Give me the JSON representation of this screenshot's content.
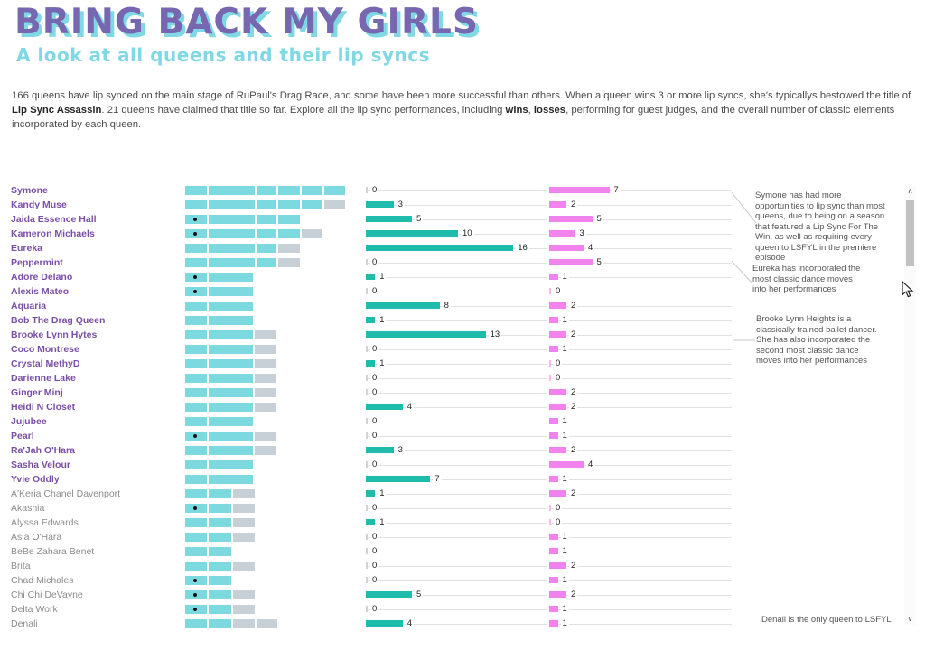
{
  "header": {
    "title": "BRING BACK MY GIRLS",
    "subtitle": "A look at all queens and their lip syncs"
  },
  "intro": {
    "p1": "166 queens have lip synced on the main stage of RuPaul's Drag Race, and some have been more successful than others. When a queen wins 3 or more lip syncs, she's typicallys bestowed the title of ",
    "b1": "Lip Sync Assassin",
    "p2": ". 21 queens have claimed that title so far. Explore all the lip sync performances, including ",
    "b2": "wins",
    "p3": ", ",
    "b3": "losses",
    "p4": ", performing for guest judges, and the overall number of classic elements incorporated by each queen."
  },
  "colors": {
    "title_purple": "#7766b0",
    "title_shadow_cyan": "#7fd8e3",
    "subtitle_cyan": "#7fd8e3",
    "queen_name_purple": "#7b4fa6",
    "queen_name_gray": "#8d8d8d",
    "segment_teal": "#7cd9e0",
    "segment_gray": "#c7d0d7",
    "bar_teal": "#1fbcab",
    "bar_pink": "#f383ec",
    "track_gray": "#e2e2e2"
  },
  "chart_data": {
    "type": "bar",
    "title": "BRING BACK MY GIRLS",
    "subtitle": "A look at all queens and their lip syncs",
    "legend_position": "none",
    "grid": false,
    "categories": [
      "Symone",
      "Kandy Muse",
      "Jaida Essence Hall",
      "Kameron Michaels",
      "Eureka",
      "Peppermint",
      "Adore Delano",
      "Alexis Mateo",
      "Aquaria",
      "Bob The Drag Queen",
      "Brooke Lynn Hytes",
      "Coco Montrese",
      "Crystal MethyD",
      "Darienne Lake",
      "Ginger Minj",
      "Heidi N Closet",
      "Jujubee",
      "Pearl",
      "Ra'Jah O'Hara",
      "Sasha Velour",
      "Yvie Oddly",
      "A'Keria Chanel Davenport",
      "Akashia",
      "Alyssa Edwards",
      "Asia O'Hara",
      "BeBe Zahara Benet",
      "Brita",
      "Chad Michales",
      "Chi Chi DeVayne",
      "Delta Work",
      "Denali"
    ],
    "assassin": [
      true,
      true,
      true,
      true,
      true,
      true,
      true,
      true,
      true,
      true,
      true,
      true,
      true,
      true,
      true,
      true,
      true,
      true,
      true,
      true,
      true,
      false,
      false,
      false,
      false,
      false,
      false,
      false,
      false,
      false,
      false
    ],
    "dots": [
      false,
      false,
      true,
      true,
      false,
      false,
      true,
      true,
      false,
      false,
      false,
      false,
      false,
      false,
      false,
      false,
      false,
      true,
      false,
      false,
      false,
      false,
      true,
      false,
      false,
      false,
      false,
      true,
      true,
      true,
      false
    ],
    "segments": [
      [
        "t24",
        "t51",
        "t22",
        "t24",
        "t23",
        "t23"
      ],
      [
        "t24",
        "t51",
        "t22",
        "t24",
        "t23",
        "g23"
      ],
      [
        "t24",
        "t51",
        "t22",
        "t24"
      ],
      [
        "t24",
        "t51",
        "t22",
        "t24",
        "g23"
      ],
      [
        "t24",
        "t51",
        "t22",
        "g24"
      ],
      [
        "t24",
        "t51",
        "t22",
        "g24"
      ],
      [
        "t24",
        "t49"
      ],
      [
        "t24",
        "t49"
      ],
      [
        "t24",
        "t49"
      ],
      [
        "t24",
        "t49"
      ],
      [
        "t24",
        "t49",
        "g24"
      ],
      [
        "t24",
        "t49",
        "g24"
      ],
      [
        "t24",
        "t49",
        "g24"
      ],
      [
        "t24",
        "t49",
        "g24"
      ],
      [
        "t24",
        "t49",
        "g24"
      ],
      [
        "t24",
        "t49",
        "g24"
      ],
      [
        "t24",
        "t49"
      ],
      [
        "t24",
        "t49",
        "g24"
      ],
      [
        "t24",
        "t49",
        "g24"
      ],
      [
        "t24",
        "t49"
      ],
      [
        "t24",
        "t49"
      ],
      [
        "t24",
        "t25",
        "g24"
      ],
      [
        "t24",
        "t25",
        "g24"
      ],
      [
        "t24",
        "t25",
        "g24"
      ],
      [
        "t24",
        "t25",
        "g24"
      ],
      [
        "t24",
        "t25"
      ],
      [
        "t24",
        "t25",
        "g24"
      ],
      [
        "t24",
        "t25"
      ],
      [
        "t24",
        "t25",
        "g24"
      ],
      [
        "t24",
        "t25",
        "g24"
      ],
      [
        "t24",
        "t25",
        "g24",
        "g23"
      ]
    ],
    "series": [
      {
        "name": "classic-elements-teal",
        "color": "#1fbcab",
        "values": [
          0,
          3,
          5,
          10,
          16,
          0,
          1,
          0,
          8,
          1,
          13,
          0,
          1,
          0,
          0,
          4,
          0,
          0,
          3,
          0,
          7,
          1,
          0,
          1,
          0,
          0,
          0,
          0,
          5,
          0,
          4
        ]
      },
      {
        "name": "wins-pink",
        "color": "#f383ec",
        "values": [
          7,
          2,
          5,
          3,
          4,
          5,
          1,
          0,
          2,
          1,
          2,
          1,
          0,
          0,
          2,
          2,
          1,
          1,
          2,
          4,
          1,
          2,
          0,
          0,
          1,
          1,
          2,
          1,
          2,
          1,
          1
        ]
      }
    ]
  },
  "annotations": {
    "symone": "Symone has had more\nopportunities to lip sync than most\nqueens, due to being on a season\nthat featured a Lip Sync For The\nWin, as well as requiring every\nqueen to LSFYL in the premiere\nepisode",
    "eureka": "Eureka has incorporated the\nmost classic dance moves\ninto her performances",
    "brooke": "Brooke Lynn Heights is a\nclassically trained ballet dancer.\nShe has also incorporated the\nsecond most classic dance\nmoves into her performances",
    "denali": "Denali is the only queen to LSFYL"
  },
  "icons": {
    "scroll_up": "∧",
    "scroll_down": "∨"
  }
}
